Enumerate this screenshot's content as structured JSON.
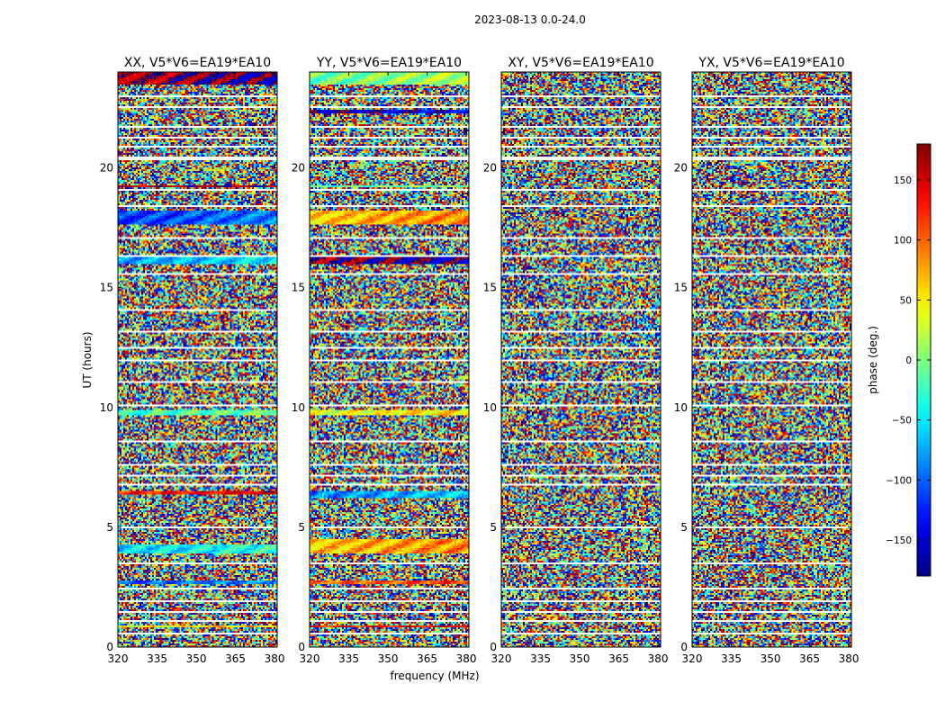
{
  "chart_data": {
    "type": "heatmap",
    "suptitle": "2023-08-13 0.0-24.0",
    "xlabel": "frequency (MHz)",
    "ylabel": "UT (hours)",
    "xlim": [
      320,
      381
    ],
    "ylim": [
      0,
      24
    ],
    "xticks": [
      320,
      335,
      350,
      365,
      380
    ],
    "yticks": [
      0,
      5,
      10,
      15,
      20
    ],
    "panels": [
      {
        "title": "XX, V5*V6=EA19*EA10",
        "correlation": "XX"
      },
      {
        "title": "YY, V5*V6=EA19*EA10",
        "correlation": "YY"
      },
      {
        "title": "XY, V5*V6=EA19*EA10",
        "correlation": "XY"
      },
      {
        "title": "YX, V5*V6=EA19*EA10",
        "correlation": "YX"
      }
    ],
    "colorbar": {
      "label": "phase (deg.)",
      "range": [
        -180,
        180
      ],
      "ticks": [
        -150,
        -100,
        -50,
        0,
        50,
        100,
        150
      ],
      "colormap": "jet"
    },
    "flagged_ut_gaps_hours": [
      [
        0.55,
        0.62
      ],
      [
        1.05,
        1.1
      ],
      [
        1.45,
        1.5
      ],
      [
        1.88,
        1.93
      ],
      [
        2.42,
        2.5
      ],
      [
        3.05,
        3.1
      ],
      [
        3.45,
        3.52
      ],
      [
        4.95,
        5.02
      ],
      [
        5.45,
        5.5
      ],
      [
        6.75,
        6.8
      ],
      [
        7.15,
        7.2
      ],
      [
        7.6,
        7.65
      ],
      [
        8.0,
        8.05
      ],
      [
        8.55,
        8.62
      ],
      [
        9.05,
        9.1
      ],
      [
        10.05,
        10.1
      ],
      [
        11.05,
        11.1
      ],
      [
        11.95,
        12.0
      ],
      [
        12.45,
        12.5
      ],
      [
        13.15,
        13.2
      ],
      [
        14.0,
        14.12
      ],
      [
        15.55,
        15.6
      ],
      [
        16.25,
        16.35
      ],
      [
        17.05,
        17.1
      ],
      [
        17.45,
        17.5
      ],
      [
        17.9,
        17.95
      ],
      [
        18.4,
        18.45
      ],
      [
        19.05,
        19.1
      ],
      [
        20.35,
        20.45
      ],
      [
        20.85,
        20.9
      ],
      [
        21.25,
        21.3
      ],
      [
        21.7,
        21.75
      ],
      [
        22.1,
        22.15
      ],
      [
        22.5,
        22.55
      ],
      [
        22.95,
        23.0
      ],
      [
        23.45,
        23.5
      ]
    ],
    "coherent_ut_bands_hours": {
      "XX": [
        [
          0.8,
          0.9,
          40
        ],
        [
          2.6,
          2.75,
          -110
        ],
        [
          3.9,
          4.25,
          -60
        ],
        [
          6.35,
          6.5,
          120
        ],
        [
          9.7,
          9.9,
          -30
        ],
        [
          15.95,
          16.25,
          -80
        ],
        [
          17.6,
          18.2,
          -120
        ],
        [
          19.2,
          19.3,
          150
        ],
        [
          23.45,
          24.0,
          160
        ]
      ],
      "YY": [
        [
          0.8,
          0.9,
          120
        ],
        [
          2.6,
          2.75,
          90
        ],
        [
          3.9,
          4.5,
          60
        ],
        [
          6.25,
          6.55,
          -90
        ],
        [
          9.7,
          9.9,
          30
        ],
        [
          15.95,
          16.25,
          170
        ],
        [
          17.6,
          18.2,
          60
        ],
        [
          19.2,
          19.3,
          -20
        ],
        [
          22.3,
          22.4,
          -170
        ],
        [
          23.45,
          24.0,
          -10
        ]
      ],
      "XY": [],
      "YX": []
    }
  }
}
